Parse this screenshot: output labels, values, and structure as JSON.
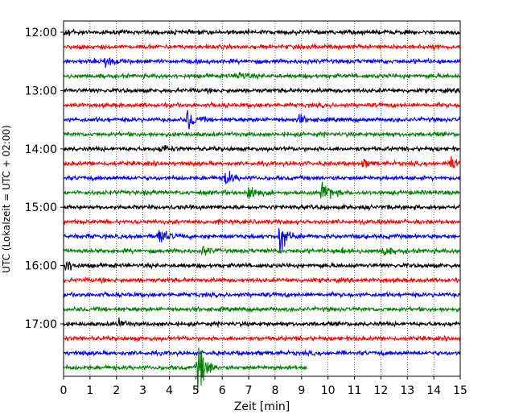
{
  "chart_data": {
    "type": "line",
    "title": "",
    "xlabel": "Zeit  [min]",
    "ylabel": "UTC (Lokalzeit = UTC + 02:00)",
    "xlim": [
      0,
      15
    ],
    "x_ticks": [
      0,
      1,
      2,
      3,
      4,
      5,
      6,
      7,
      8,
      9,
      10,
      11,
      12,
      13,
      14,
      15
    ],
    "x_tick_labels": [
      "0",
      "1",
      "2",
      "3",
      "4",
      "5",
      "6",
      "7",
      "8",
      "9",
      "10",
      "11",
      "12",
      "13",
      "14",
      "15"
    ],
    "y_tick_labels": [
      "12:00",
      "13:00",
      "14:00",
      "15:00",
      "16:00",
      "17:00"
    ],
    "grid": "vertical dotted at each minute",
    "row_interval_minutes": 15,
    "row_colors": [
      "#000000",
      "#ff0000",
      "#0000ff",
      "#008000"
    ],
    "rows": [
      {
        "start": "12:00",
        "color": "#000000",
        "end_min": 15,
        "events": [
          {
            "t": 0.1,
            "amp": 0.7
          }
        ]
      },
      {
        "start": "12:15",
        "color": "#ff0000",
        "end_min": 15,
        "events": []
      },
      {
        "start": "12:30",
        "color": "#0000ff",
        "end_min": 15,
        "events": [
          {
            "t": 1.6,
            "amp": 0.8
          }
        ]
      },
      {
        "start": "12:45",
        "color": "#008000",
        "end_min": 15,
        "events": [
          {
            "t": 6.6,
            "amp": 0.6
          }
        ]
      },
      {
        "start": "13:00",
        "color": "#000000",
        "end_min": 15,
        "events": []
      },
      {
        "start": "13:15",
        "color": "#ff0000",
        "end_min": 15,
        "events": []
      },
      {
        "start": "13:30",
        "color": "#0000ff",
        "end_min": 15,
        "events": [
          {
            "t": 4.7,
            "amp": 1.3
          },
          {
            "t": 8.9,
            "amp": 0.5
          }
        ]
      },
      {
        "start": "13:45",
        "color": "#008000",
        "end_min": 15,
        "events": []
      },
      {
        "start": "14:00",
        "color": "#000000",
        "end_min": 15,
        "events": [
          {
            "t": 3.7,
            "amp": 0.5
          }
        ]
      },
      {
        "start": "14:15",
        "color": "#ff0000",
        "end_min": 15,
        "events": [
          {
            "t": 11.3,
            "amp": 0.5
          },
          {
            "t": 14.7,
            "amp": 1.0
          }
        ]
      },
      {
        "start": "14:30",
        "color": "#0000ff",
        "end_min": 15,
        "events": [
          {
            "t": 6.1,
            "amp": 1.0
          }
        ]
      },
      {
        "start": "14:45",
        "color": "#008000",
        "end_min": 15,
        "events": [
          {
            "t": 7.0,
            "amp": 1.2
          },
          {
            "t": 9.8,
            "amp": 1.6
          }
        ]
      },
      {
        "start": "15:00",
        "color": "#000000",
        "end_min": 15,
        "events": []
      },
      {
        "start": "15:15",
        "color": "#ff0000",
        "end_min": 15,
        "events": []
      },
      {
        "start": "15:30",
        "color": "#0000ff",
        "end_min": 15,
        "events": [
          {
            "t": 3.6,
            "amp": 1.1
          },
          {
            "t": 8.2,
            "amp": 2.0
          }
        ]
      },
      {
        "start": "15:45",
        "color": "#008000",
        "end_min": 15,
        "events": [
          {
            "t": 5.3,
            "amp": 0.5
          },
          {
            "t": 10.5,
            "amp": 0.5
          },
          {
            "t": 12.1,
            "amp": 0.6
          }
        ]
      },
      {
        "start": "16:00",
        "color": "#000000",
        "end_min": 15,
        "events": [
          {
            "t": 0.1,
            "amp": 0.8
          }
        ]
      },
      {
        "start": "16:15",
        "color": "#ff0000",
        "end_min": 15,
        "events": []
      },
      {
        "start": "16:30",
        "color": "#0000ff",
        "end_min": 15,
        "events": []
      },
      {
        "start": "16:45",
        "color": "#008000",
        "end_min": 15,
        "events": []
      },
      {
        "start": "17:00",
        "color": "#000000",
        "end_min": 15,
        "events": [
          {
            "t": 2.1,
            "amp": 0.4
          }
        ]
      },
      {
        "start": "17:15",
        "color": "#ff0000",
        "end_min": 15,
        "events": []
      },
      {
        "start": "17:30",
        "color": "#0000ff",
        "end_min": 15,
        "events": []
      },
      {
        "start": "17:45",
        "color": "#008000",
        "end_min": 9.2,
        "events": [
          {
            "t": 5.1,
            "amp": 3.5
          }
        ]
      }
    ]
  }
}
